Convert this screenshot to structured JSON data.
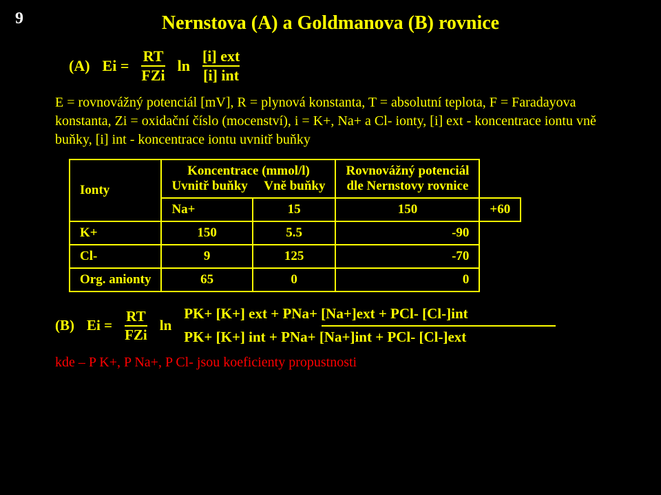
{
  "page_number": "9",
  "title": "Nernstova (A) a Goldmanova (B) rovnice",
  "eqA": {
    "label": "(A)",
    "lhs": "Ei =",
    "frac1_top": "RT",
    "frac1_bot": "FZi",
    "ln": "ln",
    "frac2_top": "[i] ext",
    "frac2_bot": "[i] int"
  },
  "desc": "E = rovnovážný potenciál [mV], R = plynová konstanta, T = absolutní teplota, F = Faradayova konstanta, Zi = oxidační číslo (mocenství), i = K+, Na+ a Cl- ionty, [i] ext - koncentrace iontu vně buňky, [i] int - koncentrace iontu uvnitř buňky",
  "table": {
    "headers": {
      "ion": "Ionty",
      "conc": "Koncentrace (mmol/l)",
      "sub_in": "Uvnitř buňky",
      "sub_out": "Vně buňky",
      "potential_l1": "Rovnovážný potenciál",
      "potential_l2": "dle Nernstovy rovnice"
    },
    "rows": [
      {
        "ion": "Na+",
        "in": "15",
        "out": "150",
        "pot": "+60"
      },
      {
        "ion": "K+",
        "in": "150",
        "out": "5.5",
        "pot": "-90"
      },
      {
        "ion": "Cl-",
        "in": "9",
        "out": "125",
        "pot": "-70"
      },
      {
        "ion": "Org. anionty",
        "in": "65",
        "out": "0",
        "pot": "0"
      }
    ]
  },
  "eqB": {
    "label": "(B)",
    "lhs": "Ei =",
    "frac1_top": "RT",
    "frac1_bot": "FZi",
    "ln": "ln",
    "top": "PK+ [K+] ext + PNa+ [Na+]ext + PCl- [Cl-]int",
    "bot": "PK+ [K+] int + PNa+ [Na+]int + PCl- [Cl-]ext"
  },
  "footnote": "kde – P K+, P Na+, P Cl- jsou koeficienty propustnosti"
}
